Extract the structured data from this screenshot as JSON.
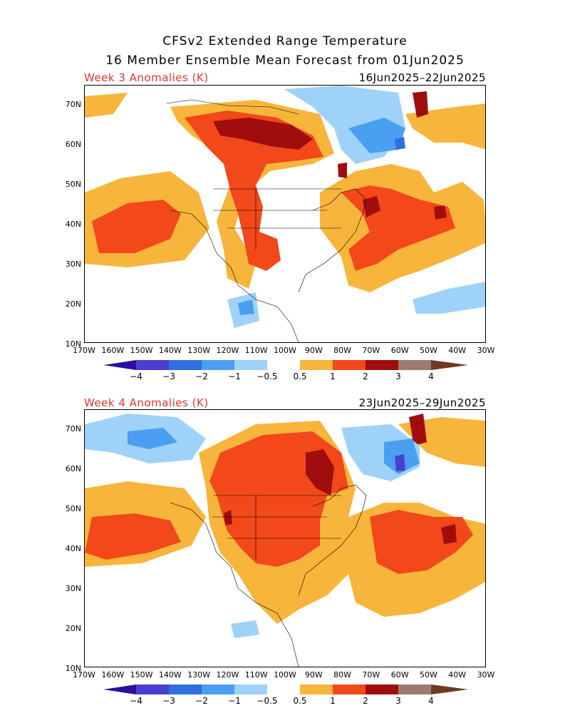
{
  "header": {
    "title_line1": "CFSv2 Extended Range Temperature",
    "title_line2": "16 Member Ensemble Mean Forecast from 01Jun2025"
  },
  "panels": [
    {
      "label": "Week 3 Anomalies (K)",
      "dates": "16Jun2025–22Jun2025"
    },
    {
      "label": "Week 4 Anomalies (K)",
      "dates": "23Jun2025–29Jun2025"
    }
  ],
  "axes": {
    "lat_labels": [
      "70N",
      "60N",
      "50N",
      "40N",
      "30N",
      "20N",
      "10N"
    ],
    "lon_labels": [
      "170W",
      "160W",
      "150W",
      "140W",
      "130W",
      "120W",
      "110W",
      "100W",
      "90W",
      "80W",
      "70W",
      "60W",
      "50W",
      "40W",
      "30W"
    ]
  },
  "colorbar": {
    "labels": [
      "−4",
      "−3",
      "−2",
      "−1",
      "−0.5",
      "0.5",
      "1",
      "2",
      "3",
      "4"
    ],
    "colors": [
      "#2b0fa0",
      "#4a3fd0",
      "#2f6fe0",
      "#4a9ff0",
      "#9fd2f8",
      "#ffffff",
      "#f7b53b",
      "#f2481a",
      "#a00d0d",
      "#9c7a6e",
      "#6e3a25"
    ]
  },
  "palette": {
    "accent_title": "#e8322a",
    "cold1": "#9fd2f8",
    "cold2": "#4a9ff0",
    "cold3": "#2f6fe0",
    "cold4": "#4a3fd0",
    "warm1": "#f7b53b",
    "warm2": "#f2481a",
    "warm3": "#a00d0d",
    "warm4": "#9c7a6e"
  }
}
